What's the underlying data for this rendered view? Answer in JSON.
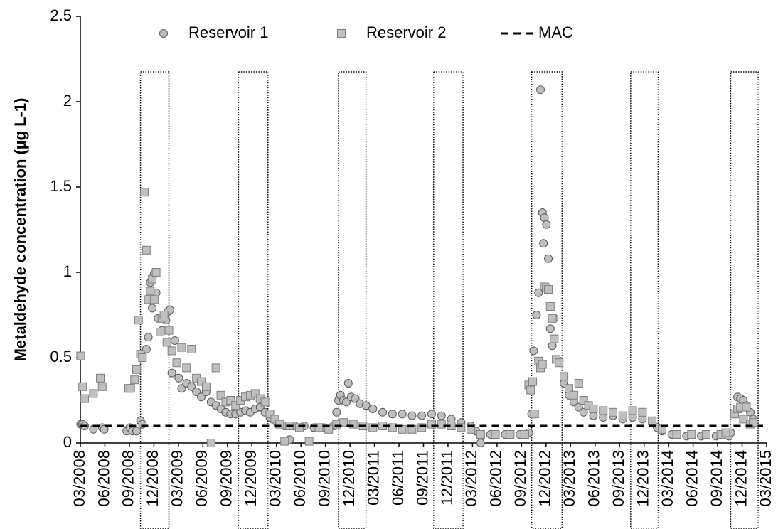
{
  "chart_data": {
    "type": "scatter",
    "y_label": "Metaldehyde concentration (µg L-1)",
    "ylim": [
      0,
      2.5
    ],
    "yticks": [
      0,
      0.5,
      1,
      1.5,
      2,
      2.5
    ],
    "xlim": [
      2008.1667,
      2015.1667
    ],
    "xticks": [
      {
        "value": 2008.1667,
        "label": "03/2008"
      },
      {
        "value": 2008.4167,
        "label": "06/2008"
      },
      {
        "value": 2008.6667,
        "label": "09/2008"
      },
      {
        "value": 2008.9167,
        "label": "12/2008"
      },
      {
        "value": 2009.1667,
        "label": "03/2009"
      },
      {
        "value": 2009.4167,
        "label": "06/2009"
      },
      {
        "value": 2009.6667,
        "label": "09/2009"
      },
      {
        "value": 2009.9167,
        "label": "12/2009"
      },
      {
        "value": 2010.1667,
        "label": "03/2010"
      },
      {
        "value": 2010.4167,
        "label": "06/2010"
      },
      {
        "value": 2010.6667,
        "label": "09/2010"
      },
      {
        "value": 2010.9167,
        "label": "12/2010"
      },
      {
        "value": 2011.1667,
        "label": "03/2011"
      },
      {
        "value": 2011.4167,
        "label": "06/2011"
      },
      {
        "value": 2011.6667,
        "label": "09/2011"
      },
      {
        "value": 2011.9167,
        "label": "12/2011"
      },
      {
        "value": 2012.1667,
        "label": "03/2012"
      },
      {
        "value": 2012.4167,
        "label": "06/2012"
      },
      {
        "value": 2012.6667,
        "label": "09/2012"
      },
      {
        "value": 2012.9167,
        "label": "12/2012"
      },
      {
        "value": 2013.1667,
        "label": "03/2013"
      },
      {
        "value": 2013.4167,
        "label": "06/2013"
      },
      {
        "value": 2013.6667,
        "label": "09/2013"
      },
      {
        "value": 2013.9167,
        "label": "12/2013"
      },
      {
        "value": 2014.1667,
        "label": "03/2014"
      },
      {
        "value": 2014.4167,
        "label": "06/2014"
      },
      {
        "value": 2014.6667,
        "label": "09/2014"
      },
      {
        "value": 2014.9167,
        "label": "12/2014"
      },
      {
        "value": 2015.1667,
        "label": "03/2015"
      }
    ],
    "highlight_periods": [
      [
        2008.78,
        2009.07
      ],
      [
        2009.78,
        2010.08
      ],
      [
        2010.8,
        2011.08
      ],
      [
        2011.77,
        2012.07
      ],
      [
        2012.77,
        2013.08
      ],
      [
        2013.78,
        2014.06
      ],
      [
        2014.8,
        2015.08
      ]
    ],
    "series": [
      {
        "name": "Reservoir 1",
        "marker": "circle",
        "color": "#bfbfbf",
        "edgecolor": "#595959",
        "x": [
          2008.17,
          2008.19,
          2008.21,
          2008.3,
          2008.39,
          2008.41,
          2008.64,
          2008.67,
          2008.7,
          2008.74,
          2008.78,
          2008.8,
          2008.84,
          2008.86,
          2008.88,
          2008.9,
          2008.92,
          2008.94,
          2008.96,
          2009.0,
          2009.04,
          2009.06,
          2009.08,
          2009.1,
          2009.13,
          2009.17,
          2009.2,
          2009.25,
          2009.3,
          2009.35,
          2009.4,
          2009.45,
          2009.5,
          2009.55,
          2009.6,
          2009.65,
          2009.7,
          2009.75,
          2009.8,
          2009.85,
          2009.9,
          2009.95,
          2010.0,
          2010.05,
          2010.1,
          2010.15,
          2010.2,
          2010.25,
          2010.3,
          2010.35,
          2010.45,
          2010.55,
          2010.65,
          2010.75,
          2010.78,
          2010.8,
          2010.82,
          2010.85,
          2010.88,
          2010.9,
          2010.93,
          2010.97,
          2011.02,
          2011.08,
          2011.15,
          2011.25,
          2011.35,
          2011.45,
          2011.55,
          2011.65,
          2011.75,
          2011.85,
          2011.95,
          2012.05,
          2012.15,
          2012.2,
          2012.25,
          2012.35,
          2012.5,
          2012.65,
          2012.74,
          2012.77,
          2012.79,
          2012.82,
          2012.84,
          2012.86,
          2012.88,
          2012.89,
          2012.9,
          2012.92,
          2012.94,
          2012.96,
          2012.98,
          2013.0,
          2013.05,
          2013.1,
          2013.15,
          2013.2,
          2013.25,
          2013.3,
          2013.4,
          2013.5,
          2013.6,
          2013.7,
          2013.8,
          2013.9,
          2014.0,
          2014.05,
          2014.1,
          2014.2,
          2014.35,
          2014.5,
          2014.65,
          2014.78,
          2014.8,
          2014.84,
          2014.87,
          2014.9,
          2014.93,
          2014.96,
          2015.0,
          2015.03
        ],
        "values": [
          0.11,
          0.11,
          0.1,
          0.08,
          0.09,
          0.08,
          0.07,
          0.09,
          0.07,
          0.07,
          0.13,
          0.11,
          0.55,
          0.62,
          0.94,
          0.79,
          0.99,
          0.88,
          0.73,
          0.66,
          0.72,
          0.77,
          0.78,
          0.41,
          0.6,
          0.38,
          0.32,
          0.35,
          0.33,
          0.3,
          0.27,
          0.3,
          0.24,
          0.22,
          0.2,
          0.18,
          0.17,
          0.17,
          0.18,
          0.19,
          0.18,
          0.2,
          0.21,
          0.18,
          0.15,
          0.13,
          0.11,
          0.1,
          0.02,
          0.1,
          0.1,
          0.09,
          0.09,
          0.1,
          0.18,
          0.25,
          0.28,
          0.25,
          0.24,
          0.35,
          0.27,
          0.26,
          0.23,
          0.22,
          0.2,
          0.18,
          0.17,
          0.17,
          0.16,
          0.16,
          0.17,
          0.16,
          0.14,
          0.12,
          0.1,
          0.07,
          0.0,
          0.05,
          0.05,
          0.05,
          0.06,
          0.17,
          0.54,
          0.75,
          0.88,
          2.07,
          1.35,
          1.17,
          1.32,
          1.28,
          1.08,
          0.67,
          0.57,
          0.73,
          0.48,
          0.35,
          0.28,
          0.24,
          0.21,
          0.18,
          0.16,
          0.15,
          0.16,
          0.14,
          0.15,
          0.14,
          0.12,
          0.09,
          0.07,
          0.05,
          0.04,
          0.04,
          0.04,
          0.04,
          0.06,
          0.17,
          0.27,
          0.26,
          0.25,
          0.22,
          0.18,
          0.14
        ]
      },
      {
        "name": "Reservoir 2",
        "marker": "square",
        "color": "#bfbfbf",
        "edgecolor": "#7f7f7f",
        "x": [
          2008.17,
          2008.19,
          2008.21,
          2008.3,
          2008.37,
          2008.39,
          2008.66,
          2008.68,
          2008.72,
          2008.74,
          2008.76,
          2008.78,
          2008.8,
          2008.82,
          2008.84,
          2008.86,
          2008.88,
          2008.9,
          2008.92,
          2008.94,
          2008.98,
          2009.0,
          2009.02,
          2009.05,
          2009.07,
          2009.1,
          2009.15,
          2009.2,
          2009.25,
          2009.3,
          2009.35,
          2009.4,
          2009.45,
          2009.5,
          2009.55,
          2009.6,
          2009.65,
          2009.7,
          2009.75,
          2009.8,
          2009.85,
          2009.9,
          2009.95,
          2010.0,
          2010.05,
          2010.1,
          2010.15,
          2010.2,
          2010.25,
          2010.3,
          2010.4,
          2010.5,
          2010.6,
          2010.7,
          2010.78,
          2010.85,
          2010.95,
          2011.05,
          2011.15,
          2011.25,
          2011.35,
          2011.45,
          2011.55,
          2011.65,
          2011.75,
          2011.85,
          2011.95,
          2012.05,
          2012.15,
          2012.25,
          2012.4,
          2012.55,
          2012.7,
          2012.74,
          2012.76,
          2012.78,
          2012.8,
          2012.84,
          2012.86,
          2012.88,
          2012.9,
          2012.92,
          2012.94,
          2012.96,
          2012.98,
          2013.0,
          2013.02,
          2013.05,
          2013.1,
          2013.15,
          2013.2,
          2013.25,
          2013.3,
          2013.35,
          2013.4,
          2013.5,
          2013.6,
          2013.7,
          2013.8,
          2013.9,
          2014.0,
          2014.1,
          2014.25,
          2014.4,
          2014.55,
          2014.7,
          2014.75,
          2014.84,
          2014.87,
          2014.9,
          2014.93,
          2014.96,
          2015.0,
          2015.03
        ],
        "values": [
          0.51,
          0.33,
          0.26,
          0.29,
          0.38,
          0.33,
          0.32,
          0.32,
          0.37,
          0.43,
          0.72,
          0.52,
          0.5,
          1.47,
          1.13,
          0.84,
          0.89,
          0.96,
          0.84,
          1.0,
          0.65,
          0.73,
          0.75,
          0.59,
          0.66,
          0.54,
          0.47,
          0.56,
          0.44,
          0.55,
          0.38,
          0.36,
          0.33,
          0.0,
          0.44,
          0.28,
          0.24,
          0.25,
          0.22,
          0.25,
          0.27,
          0.28,
          0.29,
          0.26,
          0.24,
          0.17,
          0.14,
          0.11,
          0.01,
          0.1,
          0.09,
          0.01,
          0.09,
          0.08,
          0.11,
          0.12,
          0.11,
          0.1,
          0.09,
          0.1,
          0.09,
          0.08,
          0.08,
          0.09,
          0.11,
          0.11,
          0.1,
          0.09,
          0.08,
          0.05,
          0.05,
          0.05,
          0.05,
          0.34,
          0.31,
          0.36,
          0.17,
          0.48,
          0.44,
          0.46,
          0.92,
          0.91,
          0.9,
          0.8,
          0.73,
          0.61,
          0.49,
          0.47,
          0.39,
          0.32,
          0.28,
          0.35,
          0.25,
          0.22,
          0.2,
          0.19,
          0.18,
          0.16,
          0.19,
          0.18,
          0.13,
          0.08,
          0.05,
          0.05,
          0.05,
          0.05,
          0.06,
          0.17,
          0.2,
          0.21,
          0.14,
          0.21,
          0.11,
          0.12
        ]
      },
      {
        "name": "MAC",
        "style": "dashed",
        "color": "#000000",
        "x": [
          2008.17,
          2015.13
        ],
        "values": [
          0.1,
          0.1
        ]
      }
    ]
  }
}
